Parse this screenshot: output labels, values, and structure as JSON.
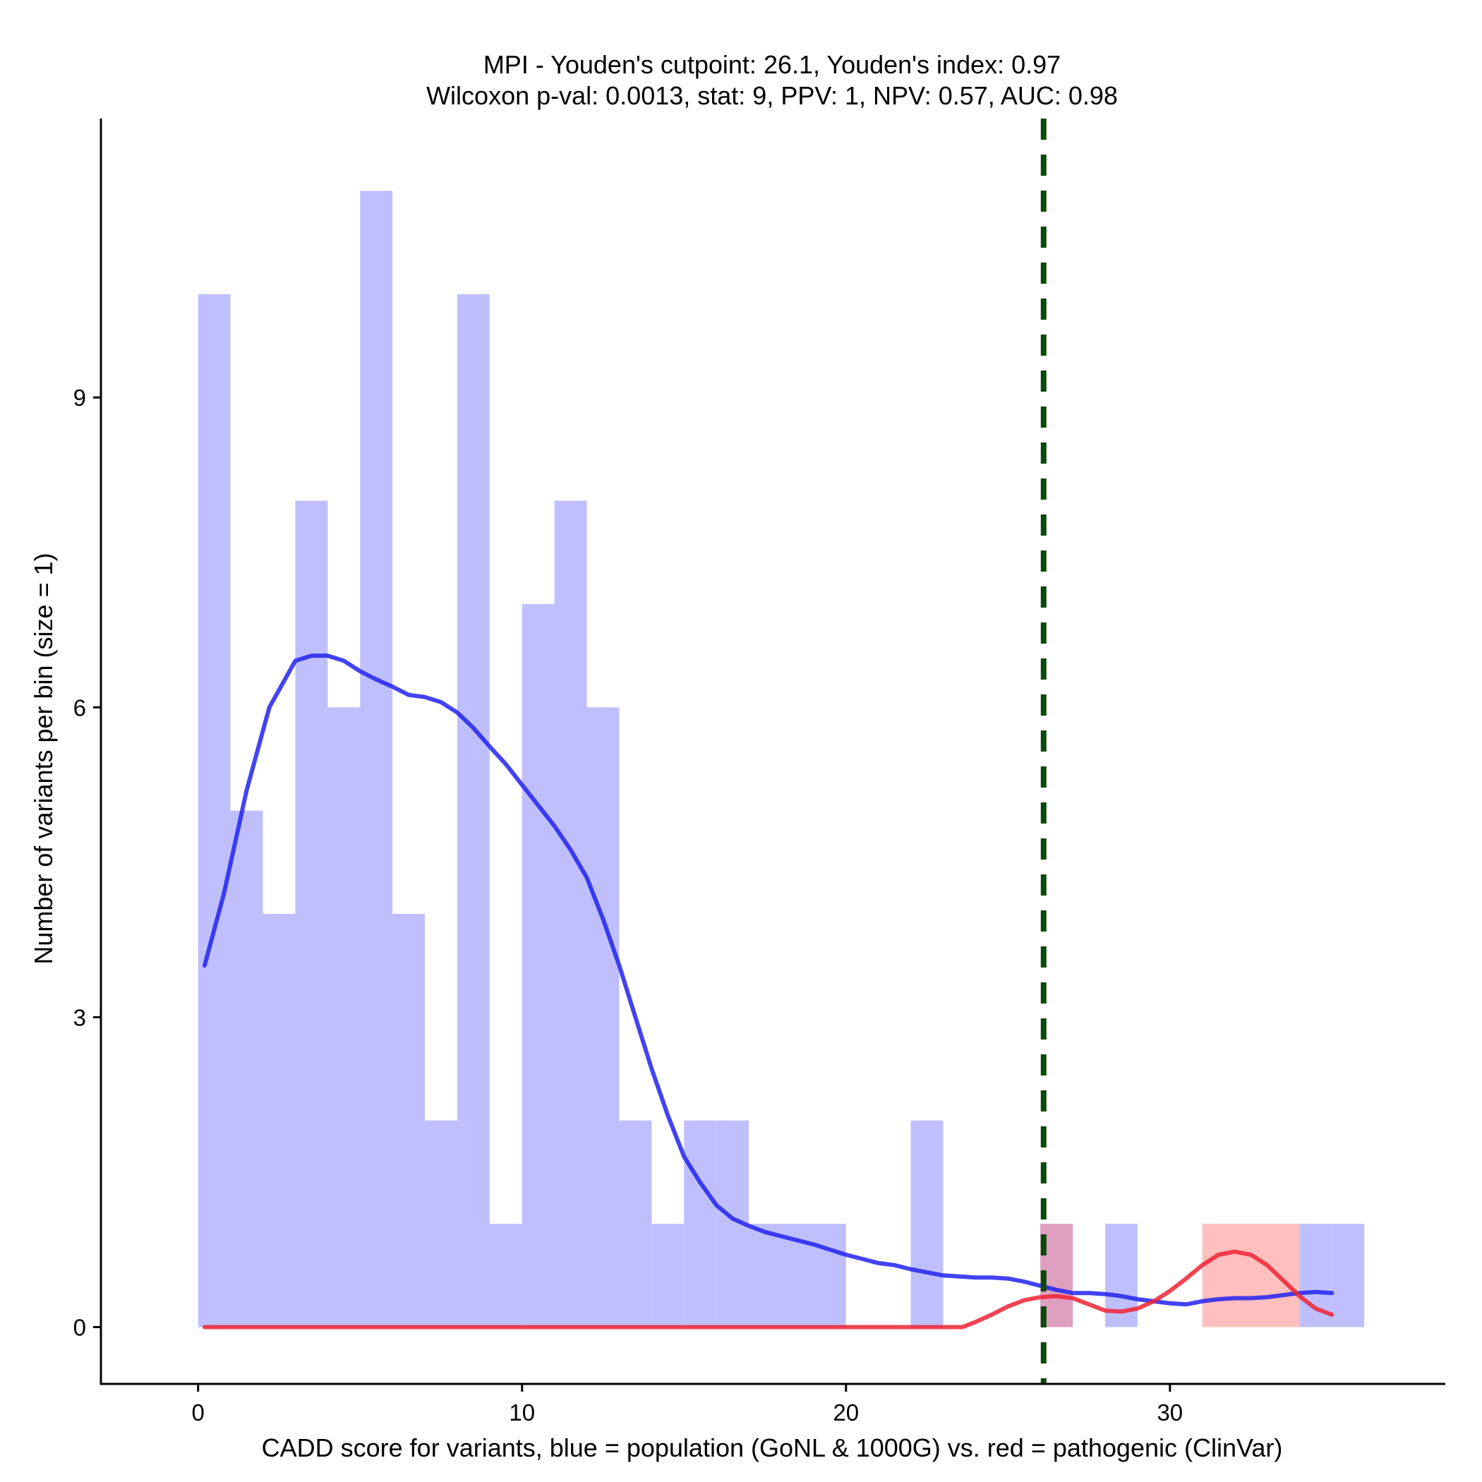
{
  "chart_data": {
    "type": "bar",
    "title_line1": "MPI - Youden's cutpoint: 26.1, Youden's index: 0.97",
    "title_line2": "Wilcoxon p-val: 0.0013, stat: 9, PPV: 1, NPV: 0.57, AUC: 0.98",
    "xlabel": "CADD score for variants, blue = population (GoNL & 1000G) vs. red = pathogenic (ClinVar)",
    "ylabel": "Number of variants per bin (size = 1)",
    "xlim": [
      -3,
      38.5
    ],
    "ylim": [
      -0.55,
      11.7
    ],
    "xticks": [
      0,
      10,
      20,
      30
    ],
    "xtick_labels": [
      "0",
      "10",
      "20",
      "30"
    ],
    "yticks": [
      0,
      3,
      6,
      9
    ],
    "ytick_labels": [
      "0",
      "3",
      "6",
      "9"
    ],
    "bin_width": 1,
    "series": [
      {
        "name": "population (GoNL & 1000G)",
        "color": "#8080ff",
        "opacity": 0.5,
        "bin_starts": [
          0,
          1,
          2,
          3,
          4,
          5,
          6,
          7,
          8,
          9,
          10,
          11,
          12,
          13,
          14,
          15,
          16,
          17,
          18,
          19,
          20,
          21,
          22,
          23,
          24,
          25,
          26,
          27,
          28,
          29,
          30,
          31,
          32,
          33,
          34,
          35
        ],
        "values": [
          10,
          5,
          4,
          8,
          6,
          11,
          4,
          2,
          10,
          1,
          7,
          8,
          6,
          2,
          1,
          2,
          2,
          1,
          1,
          1,
          0,
          0,
          2,
          0,
          0,
          0,
          1,
          0,
          1,
          0,
          0,
          0,
          0,
          0,
          1,
          1
        ]
      },
      {
        "name": "pathogenic (ClinVar)",
        "color": "#ff8080",
        "opacity": 0.5,
        "bin_starts": [
          26,
          31,
          32,
          33
        ],
        "values": [
          1,
          1,
          1,
          1
        ]
      }
    ],
    "density_lines": [
      {
        "name": "population density",
        "color": "#2222ee",
        "x": [
          0.2,
          0.8,
          1.5,
          2.2,
          3.0,
          3.5,
          4.0,
          4.5,
          5.0,
          5.5,
          6.0,
          6.5,
          7.0,
          7.5,
          8.0,
          8.5,
          9.0,
          9.5,
          10.0,
          10.5,
          11.0,
          11.5,
          12.0,
          12.5,
          13.0,
          13.5,
          14.0,
          14.5,
          15.0,
          15.5,
          16.0,
          16.5,
          17.0,
          17.5,
          18.0,
          18.5,
          19.0,
          19.5,
          20.0,
          20.5,
          21.0,
          21.5,
          22.0,
          22.5,
          23.0,
          23.5,
          24.0,
          24.5,
          25.0,
          25.5,
          26.0,
          26.5,
          27.0,
          27.5,
          28.0,
          28.5,
          29.0,
          29.5,
          30.0,
          30.5,
          31.0,
          31.5,
          32.0,
          32.5,
          33.0,
          33.5,
          34.0,
          34.5,
          35.0
        ],
        "y": [
          3.5,
          4.2,
          5.2,
          6.0,
          6.45,
          6.5,
          6.5,
          6.45,
          6.35,
          6.27,
          6.2,
          6.12,
          6.1,
          6.05,
          5.95,
          5.8,
          5.62,
          5.45,
          5.25,
          5.05,
          4.85,
          4.62,
          4.35,
          3.95,
          3.5,
          3.0,
          2.5,
          2.05,
          1.65,
          1.4,
          1.18,
          1.05,
          0.98,
          0.92,
          0.88,
          0.84,
          0.8,
          0.75,
          0.7,
          0.66,
          0.62,
          0.6,
          0.56,
          0.53,
          0.5,
          0.49,
          0.48,
          0.48,
          0.47,
          0.44,
          0.4,
          0.36,
          0.33,
          0.33,
          0.32,
          0.3,
          0.27,
          0.25,
          0.23,
          0.22,
          0.25,
          0.27,
          0.28,
          0.28,
          0.29,
          0.31,
          0.33,
          0.34,
          0.33
        ]
      },
      {
        "name": "pathogenic density",
        "color": "#ee2233",
        "x": [
          0.2,
          23.6,
          24.0,
          24.5,
          25.0,
          25.5,
          26.0,
          26.5,
          27.0,
          27.5,
          28.0,
          28.5,
          29.0,
          29.5,
          30.0,
          30.5,
          31.0,
          31.5,
          32.0,
          32.5,
          33.0,
          33.5,
          34.0,
          34.5,
          35.0
        ],
        "y": [
          0.0,
          0.0,
          0.05,
          0.12,
          0.2,
          0.26,
          0.29,
          0.3,
          0.28,
          0.22,
          0.16,
          0.15,
          0.18,
          0.25,
          0.35,
          0.47,
          0.6,
          0.7,
          0.73,
          0.7,
          0.6,
          0.45,
          0.3,
          0.18,
          0.12
        ]
      }
    ],
    "cutpoint": {
      "value": 26.1,
      "color": "#0a4a0a",
      "style": "dashed"
    },
    "grid": false,
    "legend": "none"
  }
}
